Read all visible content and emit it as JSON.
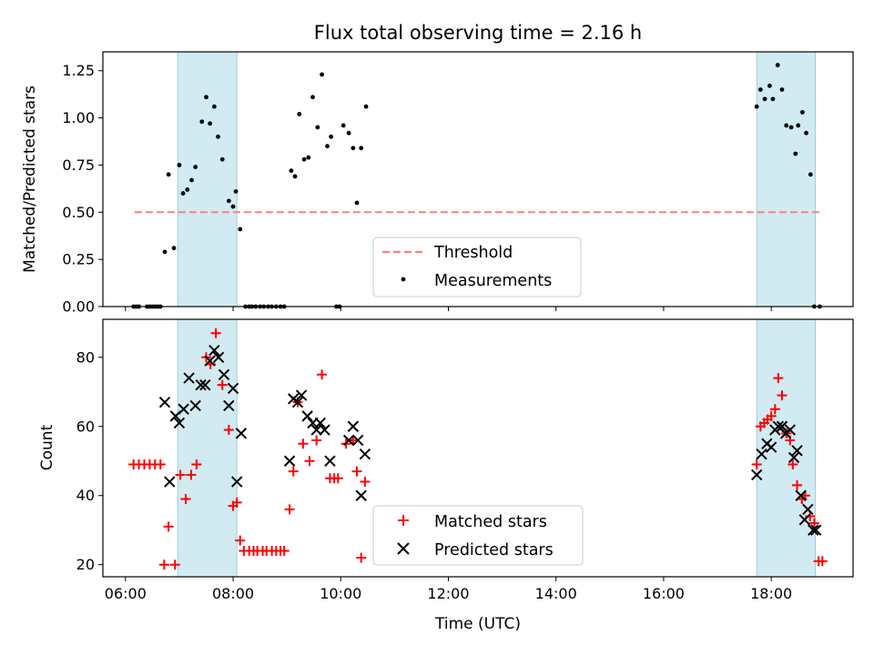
{
  "chart_data": [
    {
      "type": "scatter",
      "title": "Flux total observing time = 2.16 h",
      "ylabel": "Matched/Predicted stars",
      "xlim": [
        5.58,
        19.52
      ],
      "ylim": [
        0,
        1.35
      ],
      "y_ticks": [
        {
          "value": 0,
          "label": "0.00"
        },
        {
          "value": 0.25,
          "label": "0.25"
        },
        {
          "value": 0.5,
          "label": "0.50"
        },
        {
          "value": 0.75,
          "label": "0.75"
        },
        {
          "value": 1.0,
          "label": "1.00"
        },
        {
          "value": 1.25,
          "label": "1.25"
        }
      ],
      "shaded_intervals": [
        {
          "start": 6.97,
          "end": 8.07
        },
        {
          "start": 17.73,
          "end": 18.82
        }
      ],
      "shade_color": "#add8e6",
      "threshold": {
        "name": "Threshold",
        "y": 0.5,
        "x_start": 6.17,
        "x_end": 18.92,
        "color": "#ff7f7f"
      },
      "series": [
        {
          "name": "Measurements",
          "marker": "dot",
          "color": "#000000",
          "x": [
            6.15,
            6.2,
            6.25,
            6.4,
            6.45,
            6.5,
            6.55,
            6.6,
            6.65,
            6.73,
            6.8,
            6.9,
            7.0,
            7.07,
            7.15,
            7.23,
            7.3,
            7.42,
            7.5,
            7.57,
            7.65,
            7.72,
            7.8,
            7.92,
            8.0,
            8.05,
            8.13,
            8.23,
            8.3,
            8.35,
            8.42,
            8.5,
            8.57,
            8.65,
            8.72,
            8.8,
            8.88,
            8.95,
            9.08,
            9.15,
            9.23,
            9.32,
            9.4,
            9.48,
            9.57,
            9.65,
            9.75,
            9.82,
            9.92,
            9.98,
            10.05,
            10.15,
            10.23,
            10.3,
            10.38,
            10.47,
            17.73,
            17.8,
            17.88,
            17.97,
            18.03,
            18.12,
            18.2,
            18.28,
            18.37,
            18.45,
            18.5,
            18.58,
            18.65,
            18.73,
            18.8,
            18.9
          ],
          "y": [
            0,
            0,
            0,
            0,
            0,
            0,
            0,
            0,
            0,
            0.29,
            0.7,
            0.31,
            0.75,
            0.6,
            0.62,
            0.67,
            0.74,
            0.98,
            1.11,
            0.97,
            1.06,
            0.9,
            0.78,
            0.56,
            0.53,
            0.61,
            0.41,
            0,
            0,
            0,
            0,
            0,
            0,
            0,
            0,
            0,
            0,
            0,
            0.72,
            0.69,
            1.02,
            0.78,
            0.79,
            1.11,
            0.95,
            1.23,
            0.85,
            0.9,
            0,
            0,
            0.96,
            0.92,
            0.84,
            0.55,
            0.84,
            1.06,
            1.06,
            1.15,
            1.1,
            1.17,
            1.1,
            1.28,
            1.15,
            0.96,
            0.95,
            0.81,
            0.96,
            1.03,
            0.92,
            0.7,
            0,
            0
          ]
        }
      ],
      "legend": {
        "placement": "lower-center",
        "entries": [
          "Threshold",
          "Measurements"
        ]
      }
    },
    {
      "type": "scatter",
      "xlabel": "Time (UTC)",
      "ylabel": "Count",
      "xlim": [
        5.58,
        19.52
      ],
      "ylim": [
        16.5,
        91
      ],
      "x_ticks": [
        {
          "value": 6,
          "label": "06:00"
        },
        {
          "value": 8,
          "label": "08:00"
        },
        {
          "value": 10,
          "label": "10:00"
        },
        {
          "value": 12,
          "label": "12:00"
        },
        {
          "value": 14,
          "label": "14:00"
        },
        {
          "value": 16,
          "label": "16:00"
        },
        {
          "value": 18,
          "label": "18:00"
        }
      ],
      "y_ticks": [
        {
          "value": 20,
          "label": "20"
        },
        {
          "value": 40,
          "label": "40"
        },
        {
          "value": 60,
          "label": "60"
        },
        {
          "value": 80,
          "label": "80"
        }
      ],
      "shaded_intervals": [
        {
          "start": 6.97,
          "end": 8.07
        },
        {
          "start": 17.73,
          "end": 18.82
        }
      ],
      "shade_color": "#add8e6",
      "series": [
        {
          "name": "Matched stars",
          "marker": "plus",
          "color": "#ff0000",
          "x": [
            6.15,
            6.25,
            6.35,
            6.45,
            6.55,
            6.65,
            6.72,
            6.8,
            6.92,
            7.02,
            7.12,
            7.22,
            7.32,
            7.5,
            7.58,
            7.68,
            7.8,
            7.92,
            8.0,
            8.07,
            8.13,
            8.2,
            8.3,
            8.38,
            8.45,
            8.55,
            8.62,
            8.72,
            8.8,
            8.88,
            8.95,
            9.05,
            9.12,
            9.2,
            9.3,
            9.42,
            9.55,
            9.65,
            9.8,
            9.88,
            9.95,
            10.1,
            10.23,
            10.3,
            10.38,
            10.45,
            17.73,
            17.8,
            17.87,
            17.93,
            18.0,
            18.07,
            18.13,
            18.2,
            18.28,
            18.35,
            18.4,
            18.48,
            18.57,
            18.63,
            18.72,
            18.8,
            18.88,
            18.95
          ],
          "y": [
            49,
            49,
            49,
            49,
            49,
            49,
            20,
            31,
            20,
            46,
            39,
            46,
            49,
            80,
            78,
            87,
            72,
            59,
            37,
            38,
            27,
            24,
            24,
            24,
            24,
            24,
            24,
            24,
            24,
            24,
            24,
            36,
            47,
            67,
            55,
            50,
            56,
            75,
            45,
            45,
            45,
            55,
            56,
            47,
            22,
            44,
            49,
            60,
            61,
            62,
            63,
            65,
            74,
            69,
            58,
            56,
            49,
            43,
            39,
            40,
            34,
            32,
            21,
            21
          ]
        },
        {
          "name": "Predicted stars",
          "marker": "x",
          "color": "#000000",
          "x": [
            6.73,
            6.82,
            6.93,
            7.0,
            7.08,
            7.18,
            7.3,
            7.4,
            7.48,
            7.57,
            7.65,
            7.73,
            7.83,
            7.92,
            8.0,
            8.07,
            8.15,
            9.05,
            9.12,
            9.2,
            9.27,
            9.38,
            9.48,
            9.55,
            9.62,
            9.7,
            9.8,
            10.15,
            10.23,
            10.32,
            10.38,
            10.45,
            17.73,
            17.82,
            17.92,
            18.0,
            18.07,
            18.13,
            18.2,
            18.27,
            18.35,
            18.42,
            18.48,
            18.55,
            18.62,
            18.68,
            18.78,
            18.83
          ],
          "y": [
            67,
            44,
            63,
            61,
            65,
            74,
            66,
            72,
            72,
            79,
            82,
            80,
            75,
            66,
            71,
            44,
            58,
            50,
            68,
            67,
            69,
            63,
            61,
            59,
            61,
            59,
            50,
            56,
            60,
            56,
            40,
            52,
            46,
            52,
            55,
            54,
            59,
            60,
            60,
            58,
            59,
            51,
            53,
            40,
            33,
            36,
            30,
            30
          ]
        }
      ],
      "legend": {
        "placement": "lower-center",
        "entries": [
          "Matched stars",
          "Predicted stars"
        ]
      }
    }
  ]
}
